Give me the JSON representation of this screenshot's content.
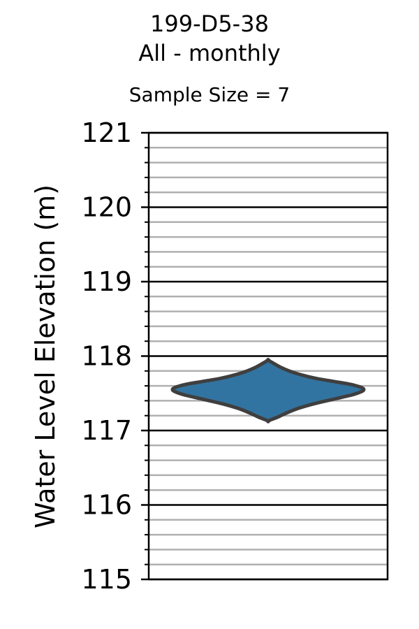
{
  "chart_data": {
    "type": "violin",
    "title_line1": "199-D5-38",
    "title_line2": "All - monthly",
    "subtitle": "Sample Size = 7",
    "ylabel": "Water Level Elevation (m)",
    "xlabel": "",
    "ylim": [
      115,
      121
    ],
    "y_major_ticks": [
      115,
      116,
      117,
      118,
      119,
      120,
      121
    ],
    "y_minor_step": 0.2,
    "grid": true,
    "violin": {
      "color": "#3274a1",
      "edge_color": "#3f3f3f",
      "sample_size": 7,
      "min": 117.12,
      "max": 117.95,
      "density_profile": [
        [
          117.12,
          0.0
        ],
        [
          117.14,
          0.02
        ],
        [
          117.18,
          0.1
        ],
        [
          117.24,
          0.2
        ],
        [
          117.3,
          0.32
        ],
        [
          117.36,
          0.48
        ],
        [
          117.42,
          0.68
        ],
        [
          117.48,
          0.88
        ],
        [
          117.52,
          0.97
        ],
        [
          117.55,
          1.0
        ],
        [
          117.58,
          0.97
        ],
        [
          117.62,
          0.86
        ],
        [
          117.66,
          0.68
        ],
        [
          117.7,
          0.5
        ],
        [
          117.75,
          0.34
        ],
        [
          117.8,
          0.22
        ],
        [
          117.85,
          0.13
        ],
        [
          117.9,
          0.06
        ],
        [
          117.93,
          0.02
        ],
        [
          117.95,
          0.0
        ]
      ]
    }
  }
}
